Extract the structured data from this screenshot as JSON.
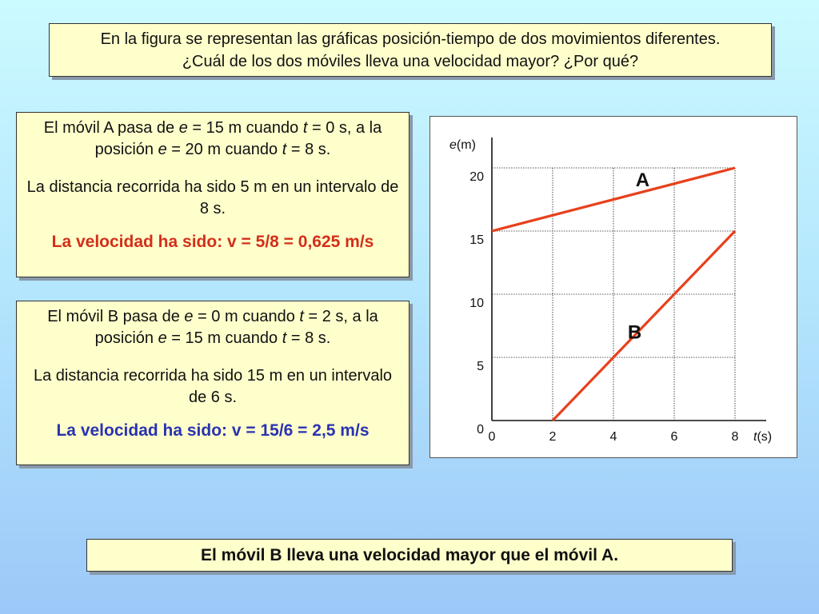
{
  "question": {
    "line1": "En la figura se representan las gráficas posición-tiempo de dos movimientos diferentes.",
    "line2": "¿Cuál de los dos móviles lleva una velocidad mayor? ¿Por qué?"
  },
  "card_a": {
    "t1": "El móvil A pasa de ",
    "v1": "e",
    "t2": " = 15 m cuando ",
    "v2": "t",
    "t3": " = 0 s, a la posición ",
    "v3": "e",
    "t4": " = 20 m cuando ",
    "v4": "t",
    "t5": " = 8 s.",
    "distance": "La distancia recorrida ha sido 5 m en un intervalo de 8 s.",
    "result": "La velocidad ha sido: v = 5/8 = 0,625 m/s"
  },
  "card_b": {
    "t1": "El móvil B pasa de ",
    "v1": "e",
    "t2": " = 0 m cuando ",
    "v2": "t",
    "t3": " = 2 s, a la posición ",
    "v3": "e",
    "t4": " = 15 m cuando ",
    "v4": "t",
    "t5": " = 8 s.",
    "distance": "La distancia recorrida ha sido 15 m en un intervalo de 6 s.",
    "result": "La velocidad ha sido: v = 15/6 = 2,5 m/s"
  },
  "conclusion": "El móvil B lleva una velocidad mayor que el móvil A.",
  "chart_data": {
    "type": "line",
    "title": "",
    "xlabel": "t (s)",
    "xlabel_var": "t",
    "xlabel_unit": "(s)",
    "ylabel": "e (m)",
    "ylabel_var": "e",
    "ylabel_unit": "(m)",
    "xlim": [
      0,
      8
    ],
    "ylim": [
      0,
      20
    ],
    "xticks": [
      0,
      2,
      4,
      6,
      8
    ],
    "yticks": [
      0,
      5,
      10,
      15,
      20
    ],
    "grid": true,
    "series": [
      {
        "name": "A",
        "x": [
          0,
          8
        ],
        "y": [
          15,
          20
        ],
        "color": "#e8401c"
      },
      {
        "name": "B",
        "x": [
          2,
          8
        ],
        "y": [
          0,
          15
        ],
        "color": "#e8401c"
      }
    ]
  }
}
